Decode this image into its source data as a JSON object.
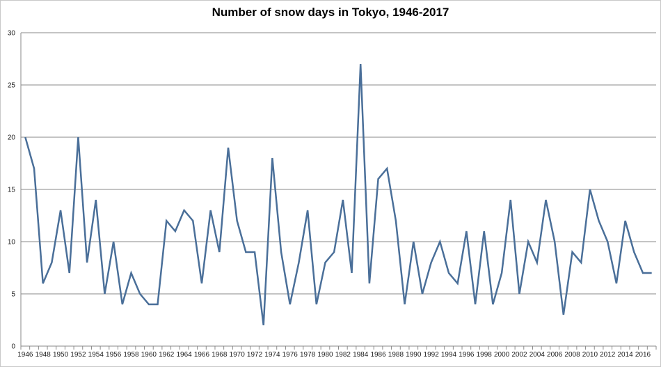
{
  "chart_data": {
    "type": "line",
    "title": "Number of snow days in Tokyo, 1946-2017",
    "xlabel": "",
    "ylabel": "",
    "ylim": [
      0,
      30
    ],
    "yticks": [
      0,
      5,
      10,
      15,
      20,
      25,
      30
    ],
    "grid": true,
    "legend": "none",
    "x_tick_labels": [
      "1946",
      "1948",
      "1950",
      "1952",
      "1954",
      "1956",
      "1958",
      "1960",
      "1962",
      "1964",
      "1966",
      "1968",
      "1970",
      "1972",
      "1974",
      "1976",
      "1978",
      "1980",
      "1982",
      "1984",
      "1986",
      "1988",
      "1990",
      "1992",
      "1994",
      "1996",
      "1998",
      "2000",
      "2002",
      "2004",
      "2006",
      "2008",
      "2010",
      "2012",
      "2014",
      "2016"
    ],
    "x": [
      1946,
      1947,
      1948,
      1949,
      1950,
      1951,
      1952,
      1953,
      1954,
      1955,
      1956,
      1957,
      1958,
      1959,
      1960,
      1961,
      1962,
      1963,
      1964,
      1965,
      1966,
      1967,
      1968,
      1969,
      1970,
      1971,
      1972,
      1973,
      1974,
      1975,
      1976,
      1977,
      1978,
      1979,
      1980,
      1981,
      1982,
      1983,
      1984,
      1985,
      1986,
      1987,
      1988,
      1989,
      1990,
      1991,
      1992,
      1993,
      1994,
      1995,
      1996,
      1997,
      1998,
      1999,
      2000,
      2001,
      2002,
      2003,
      2004,
      2005,
      2006,
      2007,
      2008,
      2009,
      2010,
      2011,
      2012,
      2013,
      2014,
      2015,
      2016,
      2017
    ],
    "series": [
      {
        "values": [
          20,
          17,
          6,
          8,
          13,
          7,
          20,
          8,
          14,
          5,
          10,
          4,
          7,
          5,
          4,
          4,
          12,
          11,
          13,
          12,
          6,
          13,
          9,
          19,
          12,
          9,
          9,
          2,
          18,
          9,
          4,
          8,
          13,
          4,
          8,
          9,
          14,
          7,
          27,
          6,
          16,
          17,
          12,
          4,
          10,
          5,
          8,
          10,
          7,
          6,
          11,
          4,
          11,
          4,
          7,
          14,
          5,
          10,
          8,
          14,
          10,
          3,
          9,
          8,
          15,
          12,
          10,
          6,
          12,
          9,
          7,
          7
        ]
      }
    ],
    "colors": {
      "line": "#4a6f99",
      "grid": "#8a8a8a",
      "axis": "#8a8a8a"
    }
  }
}
